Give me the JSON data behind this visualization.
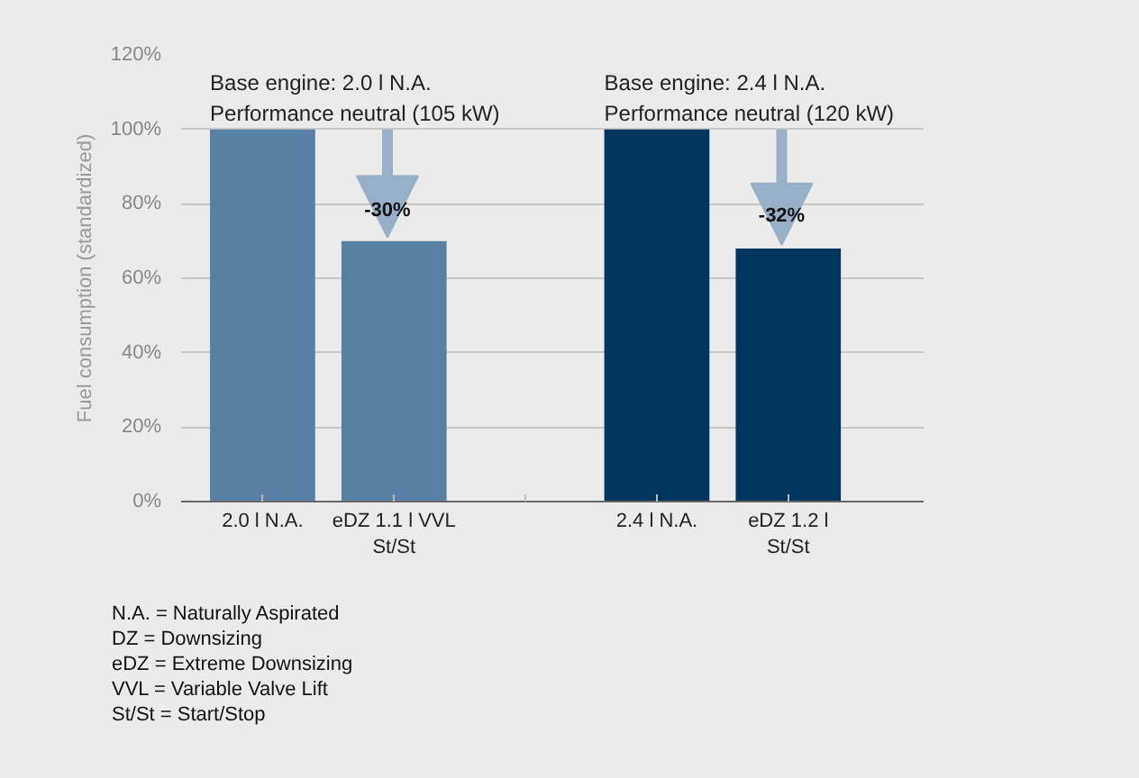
{
  "chart_data": {
    "type": "bar",
    "ylabel": "Fuel consumption (standardized)",
    "categories": [
      "2.0 l N.A.",
      "eDZ 1.1 l VVL\nSt/St",
      null,
      "2.4 l N.A.",
      "eDZ 1.2 l\nSt/St"
    ],
    "values": [
      100,
      70,
      null,
      100,
      68
    ],
    "colors": [
      "#5a7fa5",
      "#5a7fa5",
      "#5a7fa5",
      "#00355f",
      "#00355f"
    ],
    "ylim": [
      0,
      120
    ],
    "yticks": [
      {
        "value": 0,
        "label": "0%"
      },
      {
        "value": 20,
        "label": "20%"
      },
      {
        "value": 40,
        "label": "40%"
      },
      {
        "value": 60,
        "label": "60%"
      },
      {
        "value": 80,
        "label": "80%"
      },
      {
        "value": 100,
        "label": "100%"
      },
      {
        "value": 120,
        "label": "120%"
      }
    ],
    "grid": "y",
    "annotations": [
      {
        "text": "Base engine: 2.0 l N.A.\nPerformance neutral (105 kW)",
        "x": "2.0 l N.A.",
        "y": 100
      },
      {
        "text": "Base engine: 2.4 l N.A.\nPerformance neutral (120 kW)",
        "x": "2.4 l N.A.",
        "y": 100
      },
      {
        "text": "-30%",
        "x": "eDZ 1.1 l VVL\nSt/St",
        "y": 70
      },
      {
        "text": "-32%",
        "x": "eDZ 1.2 l\nSt/St",
        "y": 68
      },
      "N.A. = Naturally Aspirated\nDZ = Downsizing\neDZ = Extreme Downsizing\nVVL = Variable Valve Lift\nSt/St = Start/Stop"
    ]
  }
}
